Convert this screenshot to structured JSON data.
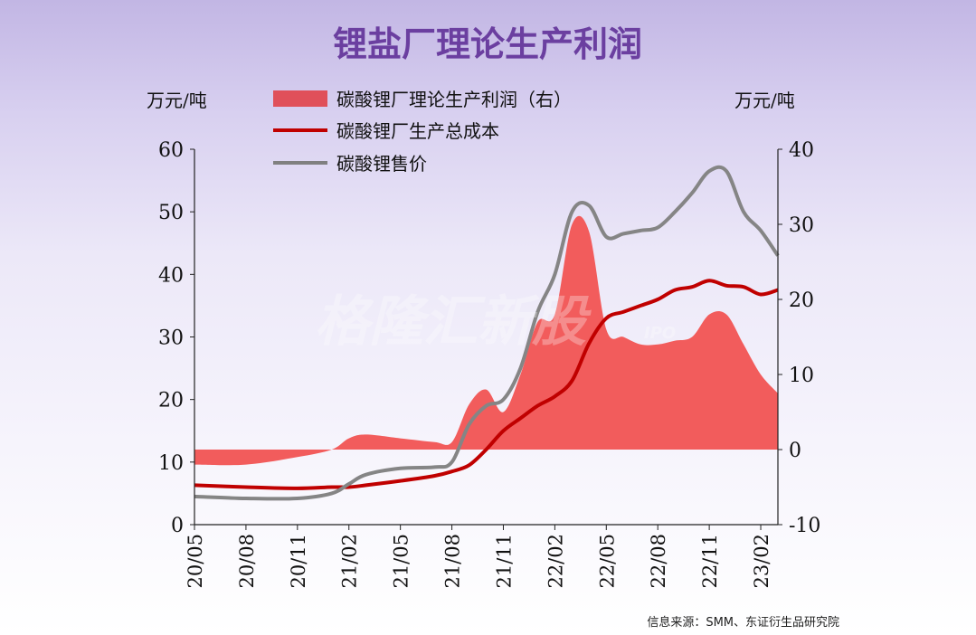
{
  "title": "锂盐厂理论生产利润",
  "source": "信息来源：SMM、东证衍生品研究院",
  "watermark": "格隆汇新股",
  "watermark_sub": "IPO",
  "chart_data": {
    "type": "area+line",
    "left_axis": {
      "label": "万元/吨",
      "min": 0,
      "max": 60,
      "ticks": [
        "0",
        "10",
        "20",
        "30",
        "40",
        "50",
        "60"
      ]
    },
    "right_axis": {
      "label": "万元/吨",
      "min": -10,
      "max": 40,
      "ticks": [
        "-10",
        "0",
        "10",
        "20",
        "30",
        "40"
      ]
    },
    "x_tick_labels": [
      "20/05",
      "20/08",
      "20/11",
      "21/02",
      "21/05",
      "21/08",
      "21/11",
      "22/02",
      "22/05",
      "22/08",
      "22/11",
      "23/02"
    ],
    "x_range": [
      "2020/05",
      "2023/03"
    ],
    "legend": [
      {
        "name": "碳酸锂厂理论生产利润（右）",
        "type": "area",
        "color": "#f06060"
      },
      {
        "name": "碳酸锂厂生产总成本",
        "type": "line",
        "color": "#c00000"
      },
      {
        "name": "碳酸锂售价",
        "type": "line",
        "color": "#808080"
      }
    ],
    "x": [
      "2020/05",
      "2020/08",
      "2020/11",
      "2021/01",
      "2021/02",
      "2021/03",
      "2021/05",
      "2021/07",
      "2021/08",
      "2021/09",
      "2021/10",
      "2021/11",
      "2021/12",
      "2022/01",
      "2022/02",
      "2022/03",
      "2022/04",
      "2022/05",
      "2022/06",
      "2022/07",
      "2022/08",
      "2022/09",
      "2022/10",
      "2022/11",
      "2022/12",
      "2023/01",
      "2023/02",
      "2023/03"
    ],
    "series": [
      {
        "name": "碳酸锂厂理论生产利润（右）",
        "axis": "right",
        "values": [
          -2,
          -2,
          -1,
          0,
          1.5,
          2,
          1.5,
          1,
          1,
          6,
          8,
          5,
          10,
          17,
          18,
          30,
          29,
          16,
          15,
          14,
          14,
          14.5,
          15,
          18,
          18,
          14,
          10,
          7.5
        ]
      },
      {
        "name": "碳酸锂厂生产总成本",
        "axis": "left",
        "values": [
          6.3,
          6,
          5.8,
          6,
          6,
          6.3,
          7,
          7.8,
          8.5,
          9.5,
          12,
          15,
          17,
          19,
          20.5,
          23,
          29,
          33,
          34,
          35,
          36,
          37.5,
          38,
          39,
          38.2,
          38,
          36.8,
          37.5
        ]
      },
      {
        "name": "碳酸锂售价",
        "axis": "left",
        "values": [
          4.5,
          4.2,
          4.2,
          5,
          6.5,
          8,
          9,
          9.2,
          10,
          16,
          19,
          20,
          25,
          34,
          40,
          50,
          51,
          46,
          46.5,
          47,
          47.5,
          50,
          53,
          56.5,
          56.5,
          50,
          47,
          43
        ]
      }
    ]
  }
}
